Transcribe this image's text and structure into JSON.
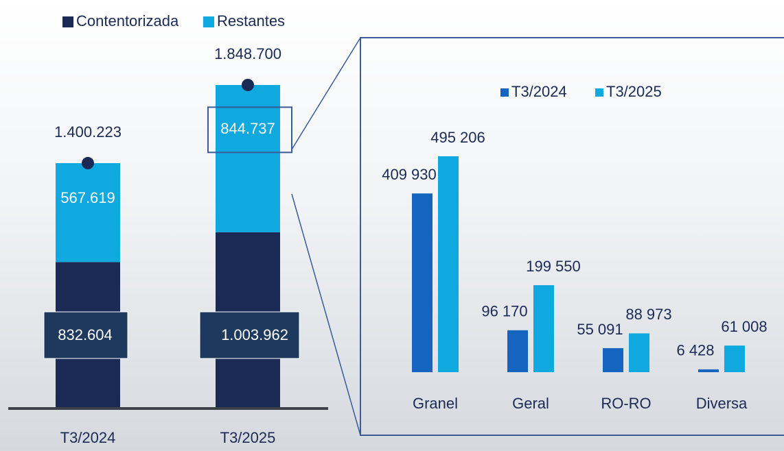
{
  "chart_data": [
    {
      "type": "stacked_bar",
      "categories": [
        "T3/2024",
        "T3/2025"
      ],
      "series": [
        {
          "name": "Contentorizada",
          "color": "#1b2a55",
          "values": [
            832604,
            1003962
          ],
          "value_labels": [
            "832.604",
            "1.003.962"
          ]
        },
        {
          "name": "Restantes",
          "color": "#0fa9e0",
          "values": [
            567619,
            844737
          ],
          "value_labels": [
            "567.619",
            "844.737"
          ]
        }
      ],
      "totals": [
        1400223,
        1848700
      ],
      "total_labels": [
        "1.400.223",
        "1.848.700"
      ]
    },
    {
      "type": "grouped_bar",
      "categories": [
        "Granel",
        "Geral",
        "RO-RO",
        "Diversa"
      ],
      "series": [
        {
          "name": "T3/2024",
          "color": "#1565c0",
          "values": [
            409930,
            96170,
            55091,
            6428
          ],
          "value_labels": [
            "409 930",
            "96 170",
            "55 091",
            "6 428"
          ]
        },
        {
          "name": "T3/2025",
          "color": "#0fa9e0",
          "values": [
            495206,
            199550,
            88973,
            61008
          ],
          "value_labels": [
            "495 206",
            "199 550",
            "88 973",
            "61 008"
          ]
        }
      ]
    }
  ]
}
